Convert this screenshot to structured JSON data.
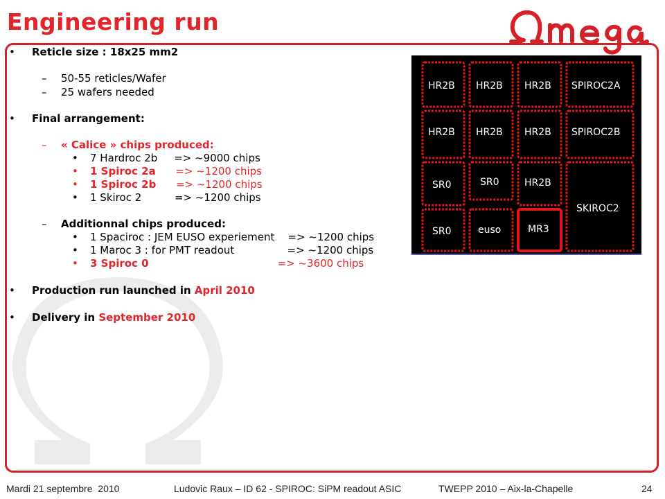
{
  "slide": {
    "title": "Engineering run",
    "footer": {
      "date": "Mardi 21 septembre  2010",
      "author": "Ludovic Raux – ID 62 - SPIROC: SiPM readout ASIC",
      "event": "TWEPP 2010 – Aix-la-Chapelle",
      "page": "24"
    },
    "colors": {
      "accent": "#e0262b",
      "frame": "#d42027",
      "watermark": "#e9e9e9"
    },
    "logo_icon": "omega-logo",
    "watermark_icon": "omega-symbol"
  },
  "bullets": {
    "reticle": "Reticle size : 18x25 mm2",
    "reticles_per_wafer": "50-55 reticles/Wafer",
    "wafers": "25 wafers needed",
    "final": "Final arrangement:",
    "calice": "« Calice » chips produced:",
    "hardroc": "7 Hardroc 2b     => ~9000 chips",
    "spiroc2a": "1 Spiroc 2a      => ~1200 chips",
    "spiroc2b": "1 Spiroc 2b      => ~1200 chips",
    "skiroc": "1 Skiroc 2          => ~1200 chips",
    "additional": "Additionnal chips produced:",
    "spaciroc": "1 Spaciroc : JEM EUSO experiement    => ~1200 chips",
    "maroc": "1 Maroc 3 : for PMT readout                => ~1200 chips",
    "spiroc0": "3 Spiroc 0                                       => ~3600 chips",
    "production_prefix": "Production run launched in ",
    "production_date": "April 2010",
    "delivery_prefix": "Delivery in ",
    "delivery_date": "September 2010"
  },
  "die": {
    "labels": [
      "HR2B",
      "HR2B",
      "HR2B",
      "SPIROC2A",
      "HR2B",
      "HR2B",
      "HR2B",
      "SPIROC2B",
      "SR0",
      "SR0",
      "HR2B",
      "SKIROC2",
      "SR0",
      "euso",
      "MR3"
    ]
  }
}
